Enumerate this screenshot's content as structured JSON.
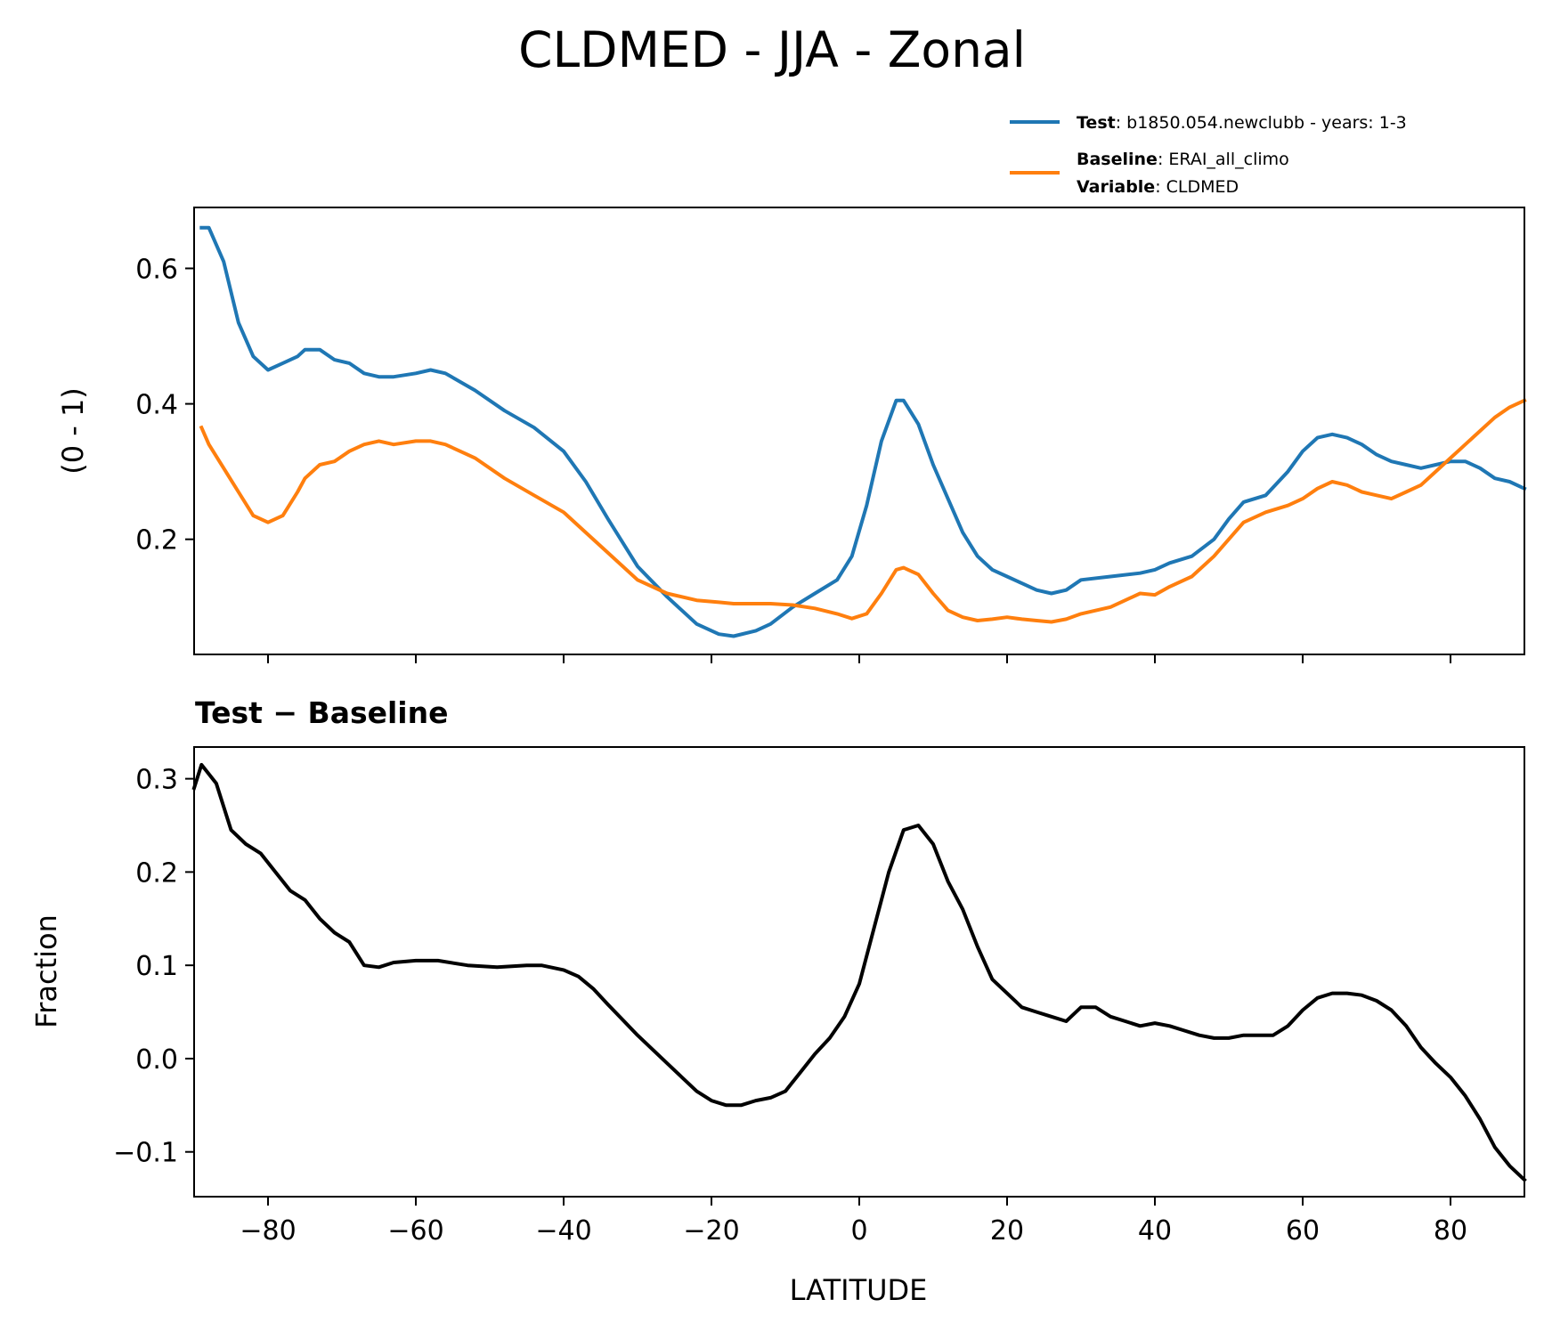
{
  "chart_data": [
    {
      "type": "line",
      "title": "CLDMED - JJA - Zonal",
      "xlabel": "",
      "ylabel": "(0 - 1)",
      "xlim": [
        -90,
        90
      ],
      "ylim": [
        0.03,
        0.69
      ],
      "yticks": [
        "0.6",
        "0.4",
        "0.2"
      ],
      "ytick_values": [
        0.6,
        0.4,
        0.2
      ],
      "xtick_values": [
        -80,
        -60,
        -40,
        -20,
        0,
        20,
        40,
        60,
        80
      ],
      "legend": {
        "position": "top-right",
        "entries": [
          {
            "bold": "Test",
            "text": ": b1850.054.newclubb - years: 1-3",
            "color": "#1f77b4"
          },
          {
            "bold": "Baseline",
            "text": ": ERAI_all_climo",
            "color": "#ff7f0e"
          },
          {
            "bold": "Variable",
            "text": ": CLDMED",
            "color": ""
          }
        ]
      },
      "x": [
        -89,
        -88,
        -86,
        -84,
        -82,
        -80,
        -78,
        -76,
        -75,
        -73,
        -71,
        -69,
        -67,
        -65,
        -63,
        -60,
        -58,
        -56,
        -52,
        -48,
        -44,
        -40,
        -37,
        -34,
        -30,
        -26,
        -22,
        -19,
        -17,
        -14,
        -12,
        -9,
        -6,
        -3,
        -1,
        1,
        3,
        5,
        6,
        8,
        10,
        12,
        14,
        16,
        18,
        20,
        22,
        24,
        26,
        28,
        30,
        34,
        38,
        40,
        42,
        45,
        48,
        50,
        52,
        55,
        58,
        60,
        62,
        64,
        66,
        68,
        70,
        72,
        74,
        76,
        78,
        80,
        82,
        84,
        86,
        88,
        90
      ],
      "series": [
        {
          "name": "Test",
          "color": "#1f77b4",
          "values": [
            0.66,
            0.66,
            0.61,
            0.52,
            0.47,
            0.45,
            0.46,
            0.47,
            0.48,
            0.48,
            0.465,
            0.46,
            0.445,
            0.44,
            0.44,
            0.445,
            0.45,
            0.445,
            0.42,
            0.39,
            0.365,
            0.33,
            0.285,
            0.23,
            0.16,
            0.115,
            0.075,
            0.06,
            0.057,
            0.065,
            0.075,
            0.1,
            0.12,
            0.14,
            0.175,
            0.25,
            0.345,
            0.405,
            0.405,
            0.37,
            0.31,
            0.26,
            0.21,
            0.175,
            0.155,
            0.145,
            0.135,
            0.125,
            0.12,
            0.125,
            0.14,
            0.145,
            0.15,
            0.155,
            0.165,
            0.175,
            0.2,
            0.23,
            0.255,
            0.265,
            0.3,
            0.33,
            0.35,
            0.355,
            0.35,
            0.34,
            0.325,
            0.315,
            0.31,
            0.305,
            0.31,
            0.315,
            0.315,
            0.305,
            0.29,
            0.285,
            0.275
          ]
        },
        {
          "name": "Baseline",
          "color": "#ff7f0e",
          "values": [
            0.365,
            0.34,
            0.305,
            0.27,
            0.235,
            0.225,
            0.235,
            0.27,
            0.29,
            0.31,
            0.315,
            0.33,
            0.34,
            0.345,
            0.34,
            0.345,
            0.345,
            0.34,
            0.32,
            0.29,
            0.265,
            0.24,
            0.21,
            0.18,
            0.14,
            0.12,
            0.11,
            0.107,
            0.105,
            0.105,
            0.105,
            0.103,
            0.098,
            0.09,
            0.083,
            0.09,
            0.12,
            0.155,
            0.158,
            0.148,
            0.12,
            0.095,
            0.085,
            0.08,
            0.082,
            0.085,
            0.082,
            0.08,
            0.078,
            0.082,
            0.09,
            0.1,
            0.12,
            0.118,
            0.13,
            0.145,
            0.175,
            0.2,
            0.225,
            0.24,
            0.25,
            0.26,
            0.275,
            0.285,
            0.28,
            0.27,
            0.265,
            0.26,
            0.27,
            0.28,
            0.3,
            0.32,
            0.34,
            0.36,
            0.38,
            0.395,
            0.405
          ]
        }
      ]
    },
    {
      "type": "line",
      "title": "Test − Baseline",
      "xlabel": "LATITUDE",
      "ylabel": "Fraction",
      "xlim": [
        -90,
        90
      ],
      "ylim": [
        -0.148,
        0.334
      ],
      "yticks": [
        "0.3",
        "0.2",
        "0.1",
        "0.0",
        "−0.1"
      ],
      "ytick_values": [
        0.3,
        0.2,
        0.1,
        0.0,
        -0.1
      ],
      "xticks": [
        "−80",
        "−60",
        "−40",
        "−20",
        "0",
        "20",
        "40",
        "60",
        "80"
      ],
      "xtick_values": [
        -80,
        -60,
        -40,
        -20,
        0,
        20,
        40,
        60,
        80
      ],
      "x": [
        -90,
        -89,
        -87,
        -85,
        -83,
        -81,
        -79,
        -77,
        -75,
        -73,
        -71,
        -69,
        -67,
        -65,
        -63,
        -60,
        -57,
        -53,
        -49,
        -45,
        -43,
        -40,
        -38,
        -36,
        -34,
        -30,
        -26,
        -24,
        -22,
        -20,
        -18,
        -16,
        -14,
        -12,
        -10,
        -8,
        -6,
        -4,
        -2,
        0,
        2,
        4,
        6,
        8,
        10,
        12,
        14,
        16,
        18,
        20,
        22,
        24,
        26,
        28,
        30,
        32,
        34,
        36,
        38,
        40,
        42,
        44,
        46,
        48,
        50,
        52,
        54,
        56,
        58,
        60,
        62,
        64,
        66,
        68,
        70,
        72,
        74,
        76,
        78,
        80,
        82,
        84,
        86,
        88,
        90
      ],
      "series": [
        {
          "name": "Test − Baseline",
          "color": "#000000",
          "values": [
            0.29,
            0.315,
            0.295,
            0.245,
            0.23,
            0.22,
            0.2,
            0.18,
            0.17,
            0.15,
            0.135,
            0.125,
            0.1,
            0.098,
            0.103,
            0.105,
            0.105,
            0.1,
            0.098,
            0.1,
            0.1,
            0.095,
            0.088,
            0.075,
            0.058,
            0.025,
            -0.005,
            -0.02,
            -0.035,
            -0.045,
            -0.05,
            -0.05,
            -0.045,
            -0.042,
            -0.035,
            -0.015,
            0.005,
            0.022,
            0.045,
            0.08,
            0.14,
            0.2,
            0.245,
            0.25,
            0.23,
            0.19,
            0.16,
            0.12,
            0.085,
            0.07,
            0.055,
            0.05,
            0.045,
            0.04,
            0.055,
            0.055,
            0.045,
            0.04,
            0.035,
            0.038,
            0.035,
            0.03,
            0.025,
            0.022,
            0.022,
            0.025,
            0.025,
            0.025,
            0.035,
            0.052,
            0.065,
            0.07,
            0.07,
            0.068,
            0.062,
            0.052,
            0.035,
            0.012,
            -0.005,
            -0.02,
            -0.04,
            -0.065,
            -0.095,
            -0.115,
            -0.13
          ]
        }
      ]
    }
  ]
}
